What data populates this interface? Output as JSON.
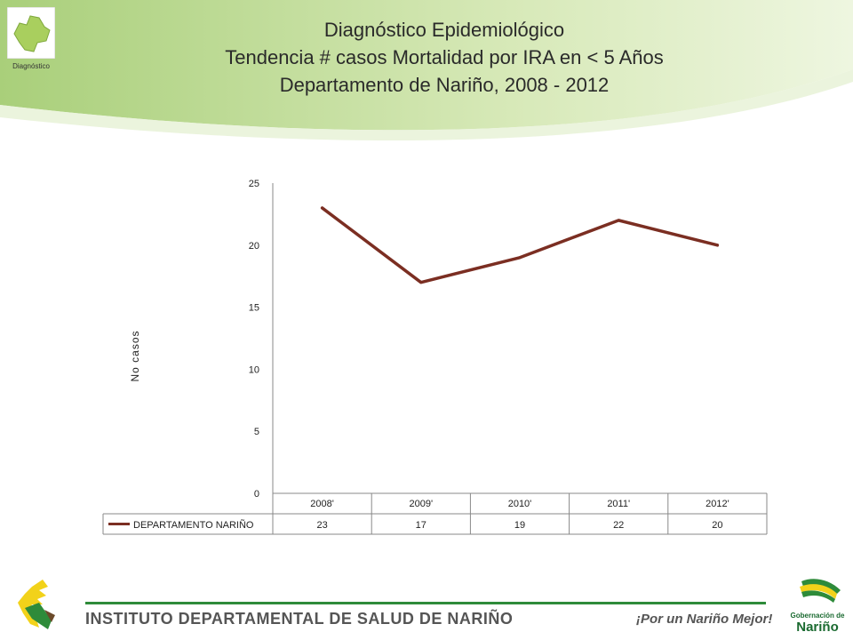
{
  "header": {
    "map_caption": "Diagnóstico",
    "title_line1": "Diagnóstico Epidemiológico",
    "title_line2": "Tendencia # casos Mortalidad por IRA en < 5 Años",
    "title_line3": "Departamento de Nariño,  2008 - 2012"
  },
  "chart_data": {
    "type": "line",
    "categories": [
      "2008'",
      "2009'",
      "2010'",
      "2011'",
      "2012'"
    ],
    "series": [
      {
        "name": "DEPARTAMENTO NARIÑO",
        "values": [
          23,
          17,
          19,
          22,
          20
        ],
        "color": "#7b2e22"
      }
    ],
    "ylabel": "No casos",
    "ylim": [
      0,
      25
    ],
    "yticks": [
      0,
      5,
      10,
      15,
      20,
      25
    ],
    "data_table": true,
    "grid": false,
    "legend": "data-table"
  },
  "footer": {
    "institute": "INSTITUTO DEPARTAMENTAL DE SALUD DE NARIÑO",
    "slogan": "¡Por un Nariño Mejor!",
    "logo_top": "Gobernación de",
    "logo_bottom": "Nariño"
  },
  "colors": {
    "header_green": "#b8d68a",
    "series_line": "#7b2e22",
    "footer_green": "#2e8b3a"
  }
}
